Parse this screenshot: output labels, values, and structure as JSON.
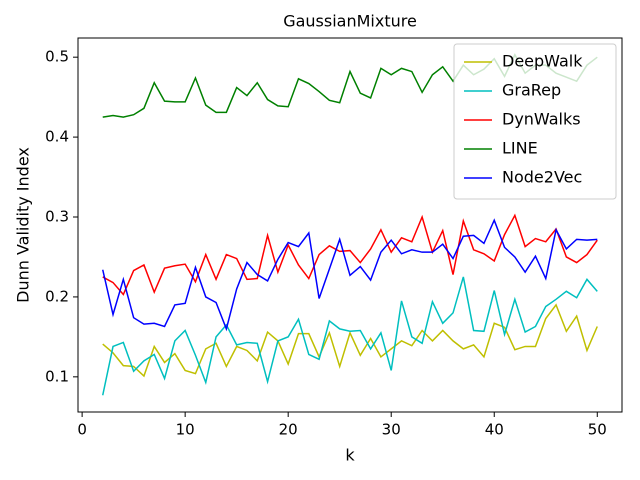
{
  "chart_data": {
    "type": "line",
    "title": "GaussianMixture",
    "xlabel": "k",
    "ylabel": "Dunn Validity Index",
    "x": [
      2,
      3,
      4,
      5,
      6,
      7,
      8,
      9,
      10,
      11,
      12,
      13,
      14,
      15,
      16,
      17,
      18,
      19,
      20,
      21,
      22,
      23,
      24,
      25,
      26,
      27,
      28,
      29,
      30,
      31,
      32,
      33,
      34,
      35,
      36,
      37,
      38,
      39,
      40,
      41,
      42,
      43,
      44,
      45,
      46,
      47,
      48,
      49,
      50
    ],
    "series": [
      {
        "name": "DeepWalk",
        "color": "#bfbf00",
        "values": [
          0.141,
          0.13,
          0.114,
          0.113,
          0.101,
          0.138,
          0.118,
          0.129,
          0.108,
          0.104,
          0.135,
          0.142,
          0.113,
          0.138,
          0.133,
          0.12,
          0.156,
          0.145,
          0.116,
          0.154,
          0.154,
          0.125,
          0.155,
          0.113,
          0.155,
          0.127,
          0.148,
          0.125,
          0.135,
          0.145,
          0.139,
          0.158,
          0.145,
          0.158,
          0.145,
          0.135,
          0.14,
          0.125,
          0.167,
          0.162,
          0.134,
          0.138,
          0.138,
          0.173,
          0.19,
          0.157,
          0.176,
          0.133,
          0.163
        ]
      },
      {
        "name": "GraRep",
        "color": "#00bfbf",
        "values": [
          0.077,
          0.138,
          0.143,
          0.107,
          0.12,
          0.128,
          0.098,
          0.145,
          0.158,
          0.127,
          0.093,
          0.15,
          0.165,
          0.14,
          0.143,
          0.142,
          0.094,
          0.145,
          0.15,
          0.172,
          0.128,
          0.122,
          0.17,
          0.16,
          0.157,
          0.158,
          0.135,
          0.155,
          0.108,
          0.195,
          0.15,
          0.142,
          0.194,
          0.167,
          0.18,
          0.225,
          0.158,
          0.157,
          0.208,
          0.153,
          0.197,
          0.156,
          0.163,
          0.188,
          0.197,
          0.207,
          0.199,
          0.222,
          0.207
        ]
      },
      {
        "name": "DynWalks",
        "color": "#ff0000",
        "values": [
          0.225,
          0.218,
          0.203,
          0.233,
          0.24,
          0.206,
          0.236,
          0.239,
          0.241,
          0.219,
          0.253,
          0.222,
          0.253,
          0.248,
          0.222,
          0.223,
          0.277,
          0.231,
          0.265,
          0.24,
          0.223,
          0.253,
          0.264,
          0.257,
          0.258,
          0.243,
          0.26,
          0.284,
          0.256,
          0.274,
          0.269,
          0.3,
          0.256,
          0.283,
          0.228,
          0.295,
          0.259,
          0.254,
          0.245,
          0.278,
          0.302,
          0.263,
          0.273,
          0.269,
          0.285,
          0.25,
          0.243,
          0.253,
          0.271
        ]
      },
      {
        "name": "LINE",
        "color": "#008000",
        "values": [
          0.425,
          0.427,
          0.425,
          0.428,
          0.436,
          0.468,
          0.445,
          0.444,
          0.444,
          0.474,
          0.44,
          0.431,
          0.431,
          0.462,
          0.452,
          0.468,
          0.447,
          0.439,
          0.438,
          0.473,
          0.467,
          0.457,
          0.446,
          0.443,
          0.482,
          0.455,
          0.449,
          0.486,
          0.478,
          0.486,
          0.482,
          0.456,
          0.478,
          0.488,
          0.47,
          0.49,
          0.478,
          0.485,
          0.498,
          0.476,
          0.503,
          0.48,
          0.49,
          0.49,
          0.48,
          0.475,
          0.47,
          0.49,
          0.5
        ]
      },
      {
        "name": "Node2Vec",
        "color": "#0000ff",
        "values": [
          0.234,
          0.178,
          0.222,
          0.174,
          0.166,
          0.167,
          0.163,
          0.19,
          0.192,
          0.237,
          0.2,
          0.193,
          0.16,
          0.21,
          0.243,
          0.228,
          0.22,
          0.247,
          0.268,
          0.263,
          0.28,
          0.198,
          0.235,
          0.272,
          0.227,
          0.238,
          0.221,
          0.256,
          0.271,
          0.254,
          0.259,
          0.256,
          0.256,
          0.266,
          0.248,
          0.276,
          0.277,
          0.267,
          0.296,
          0.262,
          0.25,
          0.231,
          0.251,
          0.223,
          0.284,
          0.26,
          0.272,
          0.271,
          0.272
        ]
      }
    ],
    "xlim": [
      -0.4,
      52.4
    ],
    "ylim": [
      0.056,
      0.524
    ],
    "xticks": [
      0,
      10,
      20,
      30,
      40,
      50
    ],
    "yticks": [
      0.1,
      0.2,
      0.3,
      0.4,
      0.5
    ],
    "grid": false,
    "legend": "upper right"
  }
}
